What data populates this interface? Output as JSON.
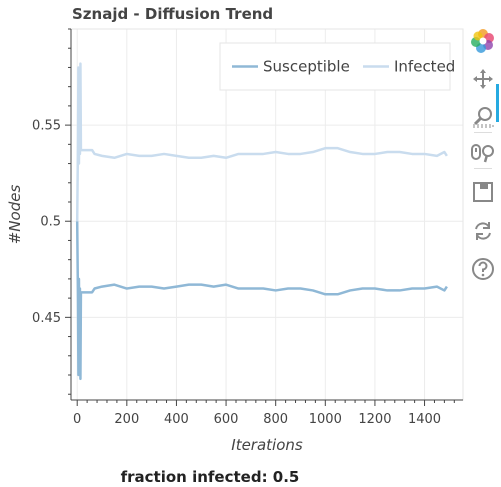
{
  "footer": {
    "text": "fraction infected: 0.5"
  },
  "toolbar": {
    "tools": [
      {
        "name": "bokeh-logo-icon",
        "interactable": false
      },
      {
        "name": "pan-tool-icon",
        "interactable": true,
        "active": true
      },
      {
        "name": "box-zoom-tool-icon",
        "interactable": true
      },
      {
        "name": "wheel-zoom-tool-icon",
        "interactable": true
      },
      {
        "name": "save-tool-icon",
        "interactable": true
      },
      {
        "name": "reset-tool-icon",
        "interactable": true
      },
      {
        "name": "help-tool-icon",
        "interactable": true
      }
    ]
  },
  "colors": {
    "susceptible": "#8fb8d6",
    "infected": "#c9dcee",
    "grid": "#ececec",
    "axis": "#444444"
  },
  "chart_data": {
    "type": "line",
    "title": "Sznajd - Diffusion Trend",
    "xlabel": "Iterations",
    "ylabel": "#Nodes",
    "xlim": [
      -25,
      1555
    ],
    "ylim": [
      0.407,
      0.6
    ],
    "xticks": [
      0,
      200,
      400,
      600,
      800,
      1000,
      1200,
      1400
    ],
    "yticks": [
      0.45,
      0.5,
      0.55
    ],
    "grid": true,
    "legend_position": "top-right",
    "series": [
      {
        "name": "Susceptible",
        "color": "#8fb8d6",
        "points": [
          [
            0,
            0.5
          ],
          [
            3,
            0.46
          ],
          [
            5,
            0.42
          ],
          [
            7,
            0.47
          ],
          [
            9,
            0.43
          ],
          [
            11,
            0.465
          ],
          [
            13,
            0.418
          ],
          [
            15,
            0.463
          ],
          [
            40,
            0.463
          ],
          [
            60,
            0.463
          ],
          [
            70,
            0.465
          ],
          [
            100,
            0.466
          ],
          [
            150,
            0.467
          ],
          [
            200,
            0.465
          ],
          [
            250,
            0.466
          ],
          [
            300,
            0.466
          ],
          [
            350,
            0.465
          ],
          [
            400,
            0.466
          ],
          [
            450,
            0.467
          ],
          [
            500,
            0.467
          ],
          [
            550,
            0.466
          ],
          [
            600,
            0.467
          ],
          [
            650,
            0.465
          ],
          [
            700,
            0.465
          ],
          [
            750,
            0.465
          ],
          [
            800,
            0.464
          ],
          [
            850,
            0.465
          ],
          [
            900,
            0.465
          ],
          [
            950,
            0.464
          ],
          [
            1000,
            0.462
          ],
          [
            1050,
            0.462
          ],
          [
            1100,
            0.464
          ],
          [
            1150,
            0.465
          ],
          [
            1200,
            0.465
          ],
          [
            1250,
            0.464
          ],
          [
            1300,
            0.464
          ],
          [
            1350,
            0.465
          ],
          [
            1400,
            0.465
          ],
          [
            1450,
            0.466
          ],
          [
            1480,
            0.464
          ],
          [
            1490,
            0.466
          ]
        ]
      },
      {
        "name": "Infected",
        "color": "#c9dcee",
        "points": [
          [
            0,
            0.5
          ],
          [
            3,
            0.54
          ],
          [
            5,
            0.58
          ],
          [
            7,
            0.53
          ],
          [
            9,
            0.57
          ],
          [
            11,
            0.535
          ],
          [
            13,
            0.582
          ],
          [
            15,
            0.537
          ],
          [
            40,
            0.537
          ],
          [
            60,
            0.537
          ],
          [
            70,
            0.535
          ],
          [
            100,
            0.534
          ],
          [
            150,
            0.533
          ],
          [
            200,
            0.535
          ],
          [
            250,
            0.534
          ],
          [
            300,
            0.534
          ],
          [
            350,
            0.535
          ],
          [
            400,
            0.534
          ],
          [
            450,
            0.533
          ],
          [
            500,
            0.533
          ],
          [
            550,
            0.534
          ],
          [
            600,
            0.533
          ],
          [
            650,
            0.535
          ],
          [
            700,
            0.535
          ],
          [
            750,
            0.535
          ],
          [
            800,
            0.536
          ],
          [
            850,
            0.535
          ],
          [
            900,
            0.535
          ],
          [
            950,
            0.536
          ],
          [
            1000,
            0.538
          ],
          [
            1050,
            0.538
          ],
          [
            1100,
            0.536
          ],
          [
            1150,
            0.535
          ],
          [
            1200,
            0.535
          ],
          [
            1250,
            0.536
          ],
          [
            1300,
            0.536
          ],
          [
            1350,
            0.535
          ],
          [
            1400,
            0.535
          ],
          [
            1450,
            0.534
          ],
          [
            1480,
            0.536
          ],
          [
            1490,
            0.534
          ]
        ]
      }
    ]
  }
}
